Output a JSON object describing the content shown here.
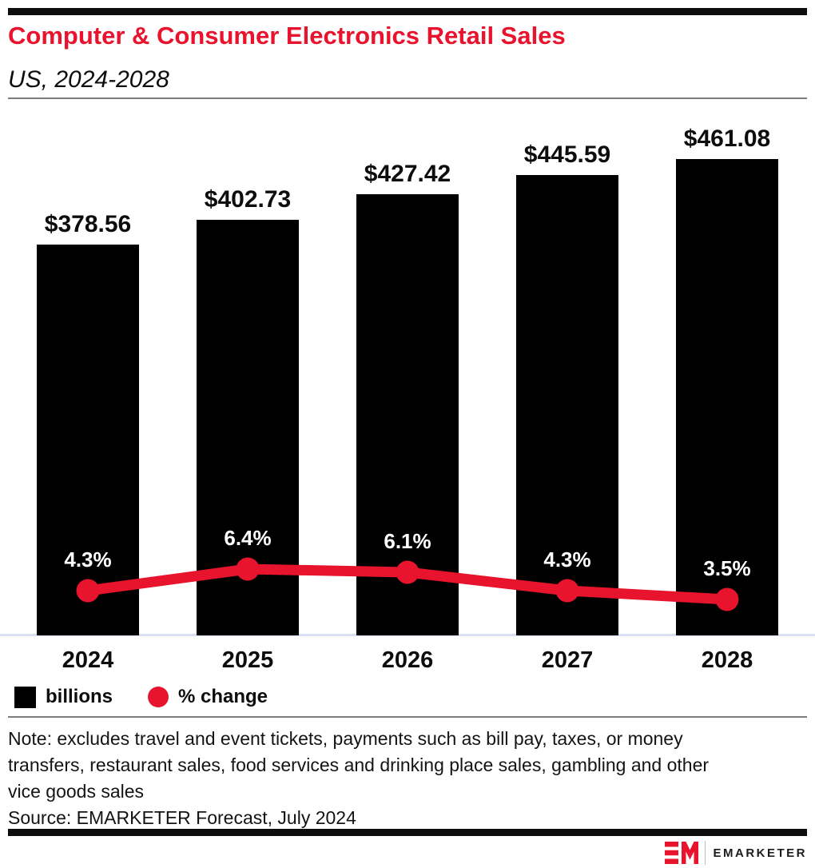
{
  "header": {
    "title": "Computer & Consumer Electronics Retail Sales",
    "subtitle": "US, 2024-2028"
  },
  "chart_data": {
    "type": "bar",
    "title": "Computer & Consumer Electronics Retail Sales",
    "subtitle": "US, 2024-2028",
    "categories": [
      "2024",
      "2025",
      "2026",
      "2027",
      "2028"
    ],
    "series": [
      {
        "name": "billions",
        "type": "bar",
        "color": "#000000",
        "values": [
          378.56,
          402.73,
          427.42,
          445.59,
          461.08
        ],
        "labels": [
          "$378.56",
          "$402.73",
          "$427.42",
          "$445.59",
          "$461.08"
        ]
      },
      {
        "name": "% change",
        "type": "line",
        "color": "#e8132d",
        "values": [
          4.3,
          6.4,
          6.1,
          4.3,
          3.5
        ],
        "labels": [
          "4.3%",
          "6.4%",
          "6.1%",
          "4.3%",
          "3.5%"
        ]
      }
    ],
    "xlabel": "",
    "ylabel": "",
    "grid": false,
    "legend_position": "bottom"
  },
  "legend": {
    "items": [
      {
        "label": "billions",
        "swatch": "square",
        "color": "#000000"
      },
      {
        "label": "% change",
        "swatch": "circle",
        "color": "#e8132d"
      }
    ]
  },
  "footer": {
    "note_lines": [
      "Note: excludes travel and event tickets, payments such as bill pay, taxes, or money",
      "transfers, restaurant sales, food services and drinking place sales, gambling and other",
      "vice goods sales"
    ],
    "source": "Source: EMARKETER Forecast, July 2024",
    "logo_text": "EMARKETER"
  },
  "colors": {
    "accent_red": "#e8132d",
    "bar_black": "#000000",
    "baseline_blue": "#d9e1f2",
    "divider_gray": "#7d7d7d"
  }
}
